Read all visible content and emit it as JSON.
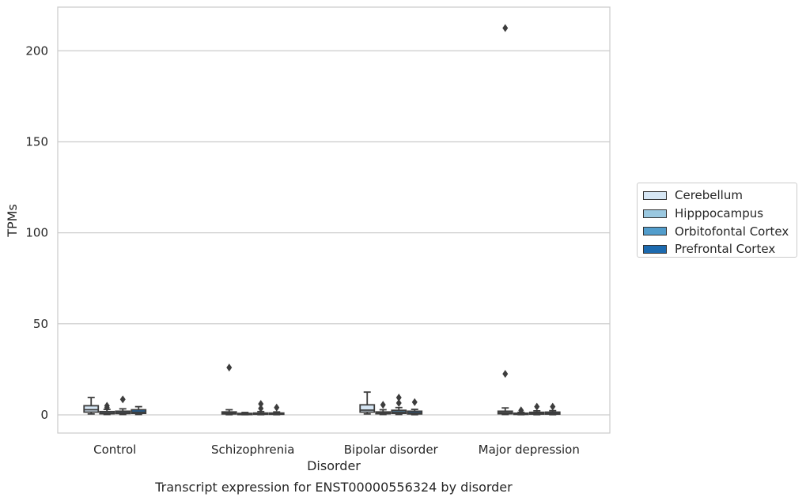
{
  "chart_data": {
    "type": "box",
    "title": "",
    "caption": "Transcript expression for ENST00000556324 by disorder",
    "xlabel": "Disorder",
    "ylabel": "TPMs",
    "ylim": [
      -10,
      224
    ],
    "yticks": [
      0,
      50,
      100,
      150,
      200
    ],
    "categories": [
      "Control",
      "Schizophrenia",
      "Bipolar disorder",
      "Major depression"
    ],
    "legend_position": "right",
    "grid": "horizontal",
    "series": [
      {
        "name": "Cerebellum",
        "color": "#d6e6f4",
        "boxes": [
          {
            "whisker_low": 0.5,
            "q1": 1.5,
            "median": 2.8,
            "q3": 5.0,
            "whisker_high": 9.5,
            "outliers": []
          },
          {
            "whisker_low": 0.1,
            "q1": 0.5,
            "median": 0.9,
            "q3": 1.6,
            "whisker_high": 2.8,
            "outliers": [
              26
            ]
          },
          {
            "whisker_low": 0.5,
            "q1": 1.5,
            "median": 2.6,
            "q3": 5.5,
            "whisker_high": 12.5,
            "outliers": []
          },
          {
            "whisker_low": 0.2,
            "q1": 0.6,
            "median": 1.2,
            "q3": 2.0,
            "whisker_high": 3.8,
            "outliers": [
              22.5,
              212.5
            ]
          }
        ]
      },
      {
        "name": "Hipppocampus",
        "color": "#9ac8e0",
        "boxes": [
          {
            "whisker_low": 0.2,
            "q1": 0.6,
            "median": 1.0,
            "q3": 1.8,
            "whisker_high": 3.0,
            "outliers": [
              4.0,
              5.0
            ]
          },
          {
            "whisker_low": 0.1,
            "q1": 0.3,
            "median": 0.5,
            "q3": 0.8,
            "whisker_high": 1.3,
            "outliers": []
          },
          {
            "whisker_low": 0.2,
            "q1": 0.6,
            "median": 1.0,
            "q3": 1.6,
            "whisker_high": 2.8,
            "outliers": [
              5.5
            ]
          },
          {
            "whisker_low": 0.1,
            "q1": 0.3,
            "median": 0.6,
            "q3": 0.9,
            "whisker_high": 1.4,
            "outliers": [
              2.5
            ]
          }
        ]
      },
      {
        "name": "Orbitofontal Cortex",
        "color": "#529dcc",
        "boxes": [
          {
            "whisker_low": 0.2,
            "q1": 0.7,
            "median": 1.2,
            "q3": 2.0,
            "whisker_high": 3.3,
            "outliers": [
              8.5
            ]
          },
          {
            "whisker_low": 0.1,
            "q1": 0.3,
            "median": 0.6,
            "q3": 1.0,
            "whisker_high": 1.8,
            "outliers": [
              3.5,
              6.0
            ]
          },
          {
            "whisker_low": 0.2,
            "q1": 0.8,
            "median": 1.5,
            "q3": 2.5,
            "whisker_high": 4.0,
            "outliers": [
              6.5,
              9.5
            ]
          },
          {
            "whisker_low": 0.1,
            "q1": 0.4,
            "median": 0.8,
            "q3": 1.4,
            "whisker_high": 2.2,
            "outliers": [
              4.5
            ]
          }
        ]
      },
      {
        "name": "Prefrontal Cortex",
        "color": "#1c6aaf",
        "boxes": [
          {
            "whisker_low": 0.2,
            "q1": 0.8,
            "median": 1.5,
            "q3": 2.8,
            "whisker_high": 4.5,
            "outliers": []
          },
          {
            "whisker_low": 0.1,
            "q1": 0.3,
            "median": 0.6,
            "q3": 1.0,
            "whisker_high": 1.6,
            "outliers": [
              4.0
            ]
          },
          {
            "whisker_low": 0.1,
            "q1": 0.5,
            "median": 1.0,
            "q3": 2.0,
            "whisker_high": 3.0,
            "outliers": [
              7.0
            ]
          },
          {
            "whisker_low": 0.1,
            "q1": 0.4,
            "median": 0.8,
            "q3": 1.5,
            "whisker_high": 2.3,
            "outliers": [
              4.5
            ]
          }
        ]
      }
    ]
  }
}
